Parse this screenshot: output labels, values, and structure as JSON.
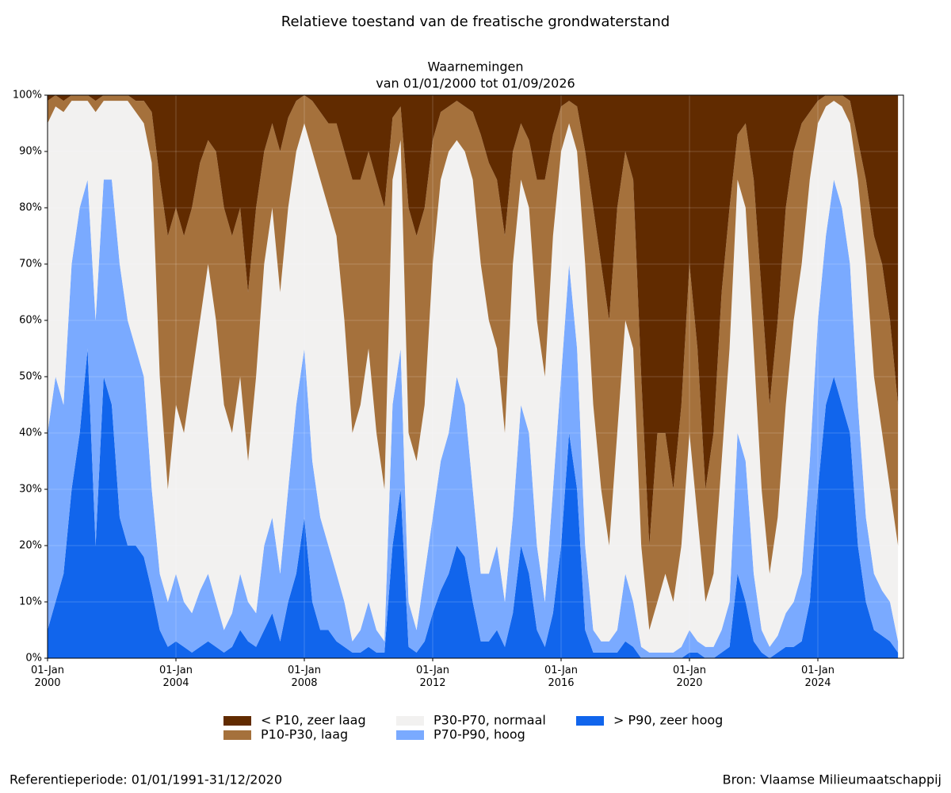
{
  "chart_data": {
    "type": "stacked_area",
    "title": "Relatieve toestand van de freatische grondwaterstand",
    "subtitle": [
      "Waarnemingen",
      "van 01/01/2000 tot 01/09/2026"
    ],
    "footer_left": "Referentieperiode: 01/01/1991-31/12/2020",
    "footer_right": "Bron: Vlaamse Milieumaatschappij",
    "x": [
      "2000-01-01",
      "2000-04-01",
      "2000-07-01",
      "2000-10-01",
      "2001-01-01",
      "2001-04-01",
      "2001-07-01",
      "2001-10-01",
      "2002-01-01",
      "2002-04-01",
      "2002-07-01",
      "2002-10-01",
      "2003-01-01",
      "2003-04-01",
      "2003-07-01",
      "2003-10-01",
      "2004-01-01",
      "2004-04-01",
      "2004-07-01",
      "2004-10-01",
      "2005-01-01",
      "2005-04-01",
      "2005-07-01",
      "2005-10-01",
      "2006-01-01",
      "2006-04-01",
      "2006-07-01",
      "2006-10-01",
      "2007-01-01",
      "2007-04-01",
      "2007-07-01",
      "2007-10-01",
      "2008-01-01",
      "2008-04-01",
      "2008-07-01",
      "2008-10-01",
      "2009-01-01",
      "2009-04-01",
      "2009-07-01",
      "2009-10-01",
      "2010-01-01",
      "2010-04-01",
      "2010-07-01",
      "2010-10-01",
      "2011-01-01",
      "2011-04-01",
      "2011-07-01",
      "2011-10-01",
      "2012-01-01",
      "2012-04-01",
      "2012-07-01",
      "2012-10-01",
      "2013-01-01",
      "2013-04-01",
      "2013-07-01",
      "2013-10-01",
      "2014-01-01",
      "2014-04-01",
      "2014-07-01",
      "2014-10-01",
      "2015-01-01",
      "2015-04-01",
      "2015-07-01",
      "2015-10-01",
      "2016-01-01",
      "2016-04-01",
      "2016-07-01",
      "2016-10-01",
      "2017-01-01",
      "2017-04-01",
      "2017-07-01",
      "2017-10-01",
      "2018-01-01",
      "2018-04-01",
      "2018-07-01",
      "2018-10-01",
      "2019-01-01",
      "2019-04-01",
      "2019-07-01",
      "2019-10-01",
      "2020-01-01",
      "2020-04-01",
      "2020-07-01",
      "2020-10-01",
      "2021-01-01",
      "2021-04-01",
      "2021-07-01",
      "2021-10-01",
      "2022-01-01",
      "2022-04-01",
      "2022-07-01",
      "2022-10-01",
      "2023-01-01",
      "2023-04-01",
      "2023-07-01",
      "2023-10-01",
      "2024-01-01",
      "2024-04-01",
      "2024-07-01",
      "2024-10-01",
      "2025-01-01",
      "2025-04-01",
      "2025-07-01",
      "2025-10-01",
      "2026-01-01",
      "2026-04-01",
      "2026-07-01"
    ],
    "series": [
      {
        "name": "< P10, zeer laag",
        "color": "#612b00",
        "values": [
          1,
          0,
          1,
          0,
          0,
          0,
          1,
          0,
          0,
          0,
          0,
          1,
          1,
          3,
          15,
          25,
          20,
          25,
          20,
          12,
          8,
          10,
          20,
          25,
          20,
          35,
          20,
          10,
          5,
          10,
          4,
          1,
          0,
          1,
          3,
          5,
          5,
          10,
          15,
          15,
          10,
          15,
          20,
          4,
          2,
          20,
          25,
          20,
          8,
          3,
          2,
          1,
          2,
          3,
          7,
          12,
          15,
          25,
          10,
          5,
          8,
          15,
          15,
          7,
          2,
          1,
          2,
          10,
          20,
          30,
          40,
          20,
          10,
          15,
          50,
          80,
          60,
          60,
          70,
          55,
          30,
          45,
          70,
          60,
          35,
          20,
          7,
          5,
          15,
          35,
          55,
          40,
          20,
          10,
          5,
          3,
          1,
          0,
          0,
          0,
          1,
          8,
          15,
          25,
          30,
          40,
          55
        ]
      },
      {
        "name": "P10-P30, laag",
        "color": "#a5713c",
        "values": [
          4,
          2,
          2,
          1,
          1,
          1,
          2,
          1,
          1,
          1,
          1,
          2,
          4,
          9,
          35,
          45,
          35,
          35,
          30,
          28,
          22,
          30,
          35,
          35,
          30,
          30,
          30,
          20,
          15,
          25,
          16,
          9,
          5,
          9,
          12,
          15,
          20,
          30,
          45,
          40,
          35,
          45,
          50,
          11,
          6,
          40,
          40,
          35,
          22,
          12,
          8,
          7,
          8,
          12,
          23,
          28,
          30,
          35,
          20,
          10,
          12,
          25,
          35,
          18,
          8,
          4,
          8,
          20,
          35,
          40,
          40,
          40,
          30,
          30,
          30,
          15,
          30,
          25,
          20,
          25,
          30,
          30,
          20,
          25,
          30,
          25,
          8,
          15,
          30,
          35,
          30,
          35,
          35,
          30,
          25,
          12,
          4,
          2,
          1,
          2,
          4,
          7,
          15,
          25,
          30,
          30,
          25
        ]
      },
      {
        "name": "P30-P70, normaal",
        "color": "#f2f1f0",
        "values": [
          55,
          48,
          52,
          29,
          19,
          14,
          37,
          14,
          14,
          29,
          39,
          42,
          45,
          58,
          35,
          20,
          30,
          30,
          42,
          48,
          55,
          50,
          40,
          32,
          35,
          25,
          42,
          50,
          55,
          50,
          50,
          45,
          40,
          55,
          60,
          60,
          60,
          50,
          37,
          40,
          45,
          35,
          27,
          40,
          37,
          30,
          30,
          30,
          45,
          50,
          50,
          42,
          45,
          55,
          55,
          45,
          35,
          30,
          45,
          40,
          40,
          40,
          40,
          45,
          40,
          25,
          35,
          50,
          40,
          27,
          17,
          35,
          45,
          45,
          18,
          4,
          9,
          14,
          9,
          18,
          35,
          22,
          8,
          13,
          30,
          45,
          45,
          45,
          40,
          25,
          13,
          21,
          37,
          50,
          55,
          50,
          35,
          23,
          14,
          18,
          25,
          40,
          45,
          35,
          28,
          20,
          17
        ]
      },
      {
        "name": "P70-P90, hoog",
        "color": "#7aaaff",
        "values": [
          35,
          40,
          30,
          40,
          40,
          30,
          40,
          35,
          40,
          45,
          40,
          35,
          32,
          18,
          10,
          8,
          12,
          8,
          7,
          10,
          12,
          8,
          4,
          6,
          10,
          7,
          6,
          15,
          17,
          12,
          20,
          30,
          30,
          25,
          20,
          15,
          12,
          8,
          2,
          4,
          8,
          4,
          2,
          25,
          25,
          8,
          4,
          12,
          17,
          23,
          25,
          30,
          27,
          20,
          12,
          12,
          15,
          8,
          17,
          25,
          25,
          15,
          8,
          22,
          30,
          30,
          25,
          15,
          4,
          2,
          2,
          4,
          12,
          8,
          2,
          1,
          1,
          1,
          1,
          2,
          4,
          2,
          2,
          2,
          4,
          8,
          25,
          25,
          12,
          4,
          2,
          3,
          6,
          8,
          12,
          25,
          30,
          30,
          35,
          35,
          30,
          25,
          15,
          10,
          8,
          7,
          2
        ]
      },
      {
        "name": "> P90, zeer hoog",
        "color": "#1165ec",
        "values": [
          5,
          10,
          15,
          30,
          40,
          55,
          20,
          50,
          45,
          25,
          20,
          20,
          18,
          12,
          5,
          2,
          3,
          2,
          1,
          2,
          3,
          2,
          1,
          2,
          5,
          3,
          2,
          5,
          8,
          3,
          10,
          15,
          25,
          10,
          5,
          5,
          3,
          2,
          1,
          1,
          2,
          1,
          1,
          20,
          30,
          2,
          1,
          3,
          8,
          12,
          15,
          20,
          18,
          10,
          3,
          3,
          5,
          2,
          8,
          20,
          15,
          5,
          2,
          8,
          20,
          40,
          30,
          5,
          1,
          1,
          1,
          1,
          3,
          2,
          0,
          0,
          0,
          0,
          0,
          0,
          1,
          1,
          0,
          0,
          1,
          2,
          15,
          10,
          3,
          1,
          0,
          1,
          2,
          2,
          3,
          10,
          30,
          45,
          50,
          45,
          40,
          20,
          10,
          5,
          4,
          3,
          1
        ]
      }
    ],
    "xlim": [
      "2000-01-01",
      "2026-09-01"
    ],
    "xticks": [
      {
        "value": "2000-01-01",
        "label": "01-Jan\n2000"
      },
      {
        "value": "2004-01-01",
        "label": "01-Jan\n2004"
      },
      {
        "value": "2008-01-01",
        "label": "01-Jan\n2008"
      },
      {
        "value": "2012-01-01",
        "label": "01-Jan\n2012"
      },
      {
        "value": "2016-01-01",
        "label": "01-Jan\n2016"
      },
      {
        "value": "2020-01-01",
        "label": "01-Jan\n2020"
      },
      {
        "value": "2024-01-01",
        "label": "01-Jan\n2024"
      }
    ],
    "ylim": [
      0,
      100
    ],
    "yticks": [
      {
        "value": 0,
        "label": "0%"
      },
      {
        "value": 10,
        "label": "10%"
      },
      {
        "value": 20,
        "label": "20%"
      },
      {
        "value": 30,
        "label": "30%"
      },
      {
        "value": 40,
        "label": "40%"
      },
      {
        "value": 50,
        "label": "50%"
      },
      {
        "value": 60,
        "label": "60%"
      },
      {
        "value": 70,
        "label": "70%"
      },
      {
        "value": 80,
        "label": "80%"
      },
      {
        "value": 90,
        "label": "90%"
      },
      {
        "value": 100,
        "label": "100%"
      }
    ],
    "grid": true,
    "legend": "bottom"
  }
}
